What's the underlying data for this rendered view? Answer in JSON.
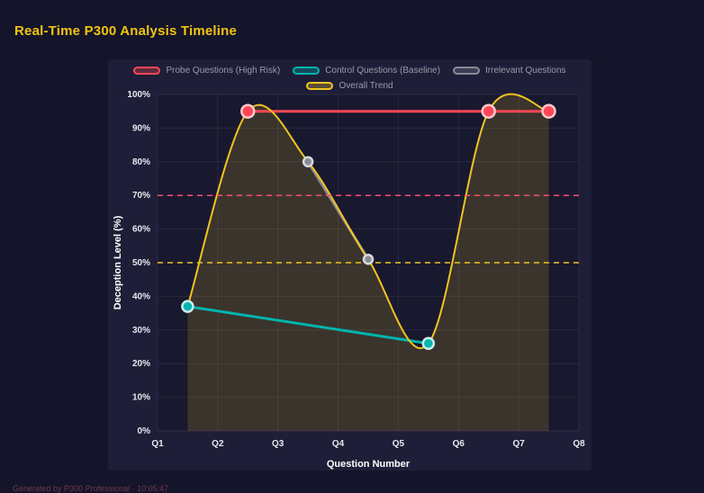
{
  "page": {
    "title": "Real-Time P300 Analysis Timeline",
    "footer": "Generated by P300 Professional · 10:05:47"
  },
  "chart_data": {
    "type": "line",
    "title": "Real-Time P300 Analysis Timeline",
    "xlabel": "Question Number",
    "ylabel": "Deception Level (%)",
    "x_ticks": [
      "Q1",
      "Q2",
      "Q3",
      "Q4",
      "Q5",
      "Q6",
      "Q7",
      "Q8"
    ],
    "y_ticks": [
      "0%",
      "10%",
      "20%",
      "30%",
      "40%",
      "50%",
      "60%",
      "70%",
      "80%",
      "90%",
      "100%"
    ],
    "xlim": [
      1,
      8
    ],
    "ylim": [
      0,
      100
    ],
    "grid": true,
    "legend_position": "top",
    "series": [
      {
        "name": "Probe Questions (High Risk)",
        "color": "#ff4757",
        "ring": "#ffc9cd",
        "marker_radius": 7,
        "x": [
          2.5,
          6.5,
          7.5
        ],
        "values": [
          95,
          95,
          95
        ]
      },
      {
        "name": "Control Questions (Baseline)",
        "color": "#00b5ad",
        "ring": "#c6efed",
        "marker_radius": 6,
        "x": [
          1.5,
          5.5
        ],
        "values": [
          37,
          26
        ]
      },
      {
        "name": "Irrelevant Questions",
        "color": "#8a8a96",
        "ring": "#d8d8e0",
        "marker_radius": 5,
        "x": [
          3.5,
          4.5
        ],
        "values": [
          80,
          51
        ]
      },
      {
        "name": "Overall Trend",
        "color": "#f0c420",
        "smooth": true,
        "fill": true,
        "x": [
          1.5,
          2.5,
          3.5,
          4.5,
          5.5,
          6.5,
          7.5
        ],
        "values": [
          37,
          95,
          80,
          51,
          26,
          95,
          95
        ]
      }
    ],
    "reference_lines": [
      {
        "value": 70,
        "color": "#ff4d6e",
        "style": "dashed"
      },
      {
        "value": 50,
        "color": "#f0c420",
        "style": "dashed"
      }
    ],
    "fill_color": "rgba(240,196,32,0.16)"
  }
}
